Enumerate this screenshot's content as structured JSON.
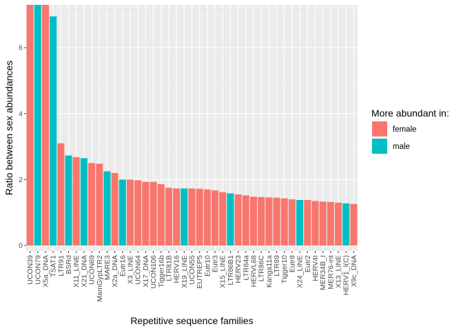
{
  "chart_data": {
    "type": "bar",
    "xlabel": "Repetitive sequence families",
    "ylabel": "Ratio between sex abundances",
    "ylim": [
      0,
      7.3
    ],
    "yticks": [
      0,
      2,
      4,
      6
    ],
    "grid": true,
    "legend": {
      "title": "More abundant in:",
      "placement": "right",
      "entries": [
        {
          "label": "female",
          "color": "#F8766D"
        },
        {
          "label": "male",
          "color": "#00BFC4"
        }
      ]
    },
    "categories": [
      "UCON39",
      "UCON79",
      "X5a_DNA",
      "TSAT1",
      "LTR91",
      "BSRd",
      "X11_LINE",
      "X21_DNA",
      "UCON69",
      "MamGypLTR2",
      "MARE3",
      "X2a_DNA",
      "Eutr16",
      "X3_LINE",
      "UCON64",
      "X17_DNA",
      "UCON106",
      "Tigger16b",
      "LTR81B",
      "HERV16",
      "X19_LINE",
      "UCON55",
      "EUTREP5",
      "Eutr10",
      "Eutr3",
      "X15_LINE",
      "LTR86B1",
      "HERV23",
      "LTR84a",
      "HERVL68",
      "LTR86C",
      "Kanga11a",
      "LTR89",
      "Tigger10",
      "Eutr8",
      "X24_LINE",
      "Eutr2",
      "HERV4I",
      "MER34B_I",
      "MER76-int",
      "X13_LINE",
      "HERV1_I(C)",
      "X9c_DNA"
    ],
    "values": [
      7.3,
      7.3,
      7.3,
      6.95,
      3.1,
      2.73,
      2.68,
      2.65,
      2.5,
      2.48,
      2.25,
      2.2,
      2.0,
      2.0,
      1.98,
      1.93,
      1.93,
      1.86,
      1.75,
      1.73,
      1.73,
      1.73,
      1.72,
      1.7,
      1.67,
      1.62,
      1.58,
      1.55,
      1.52,
      1.48,
      1.47,
      1.46,
      1.45,
      1.43,
      1.4,
      1.38,
      1.38,
      1.35,
      1.33,
      1.32,
      1.3,
      1.28,
      1.26
    ],
    "abundant_in": [
      "female",
      "male",
      "female",
      "male",
      "female",
      "male",
      "female",
      "male",
      "female",
      "female",
      "male",
      "female",
      "male",
      "female",
      "female",
      "female",
      "female",
      "female",
      "female",
      "female",
      "male",
      "female",
      "female",
      "female",
      "female",
      "female",
      "male",
      "female",
      "female",
      "female",
      "female",
      "female",
      "female",
      "female",
      "female",
      "male",
      "female",
      "female",
      "female",
      "female",
      "female",
      "male",
      "female"
    ]
  }
}
